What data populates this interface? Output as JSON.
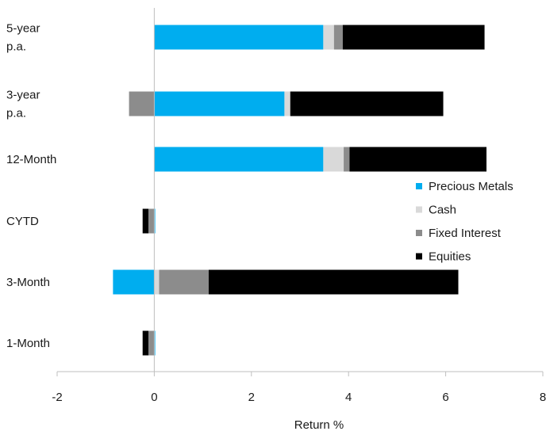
{
  "chart_data": {
    "type": "bar",
    "orientation": "horizontal",
    "stacked": true,
    "categories": [
      [
        "5-year",
        "p.a."
      ],
      [
        "3-year",
        "p.a."
      ],
      [
        "12-Month"
      ],
      [
        "CYTD"
      ],
      [
        "3-Month"
      ],
      [
        "1-Month"
      ]
    ],
    "series": [
      {
        "name": "Precious Metals",
        "color": "#00adef",
        "values": [
          3.48,
          2.68,
          3.48,
          0.02,
          -0.85,
          0.02
        ]
      },
      {
        "name": "Cash",
        "color": "#d9d9d9",
        "values": [
          0.22,
          0.12,
          0.42,
          0.0,
          0.1,
          0.0
        ]
      },
      {
        "name": "Fixed Interest",
        "color": "#8c8c8c",
        "values": [
          0.18,
          -0.52,
          0.12,
          -0.12,
          1.02,
          -0.12
        ]
      },
      {
        "name": "Equities",
        "color": "#000000",
        "values": [
          2.92,
          3.15,
          2.82,
          -0.12,
          5.14,
          -0.12
        ]
      }
    ],
    "xlabel": "Return %",
    "ylabel": "",
    "xlim": [
      -2,
      8
    ],
    "xticks": [
      "-2",
      "0",
      "2",
      "4",
      "6",
      "8"
    ],
    "grid": false,
    "legend_position": "right"
  }
}
